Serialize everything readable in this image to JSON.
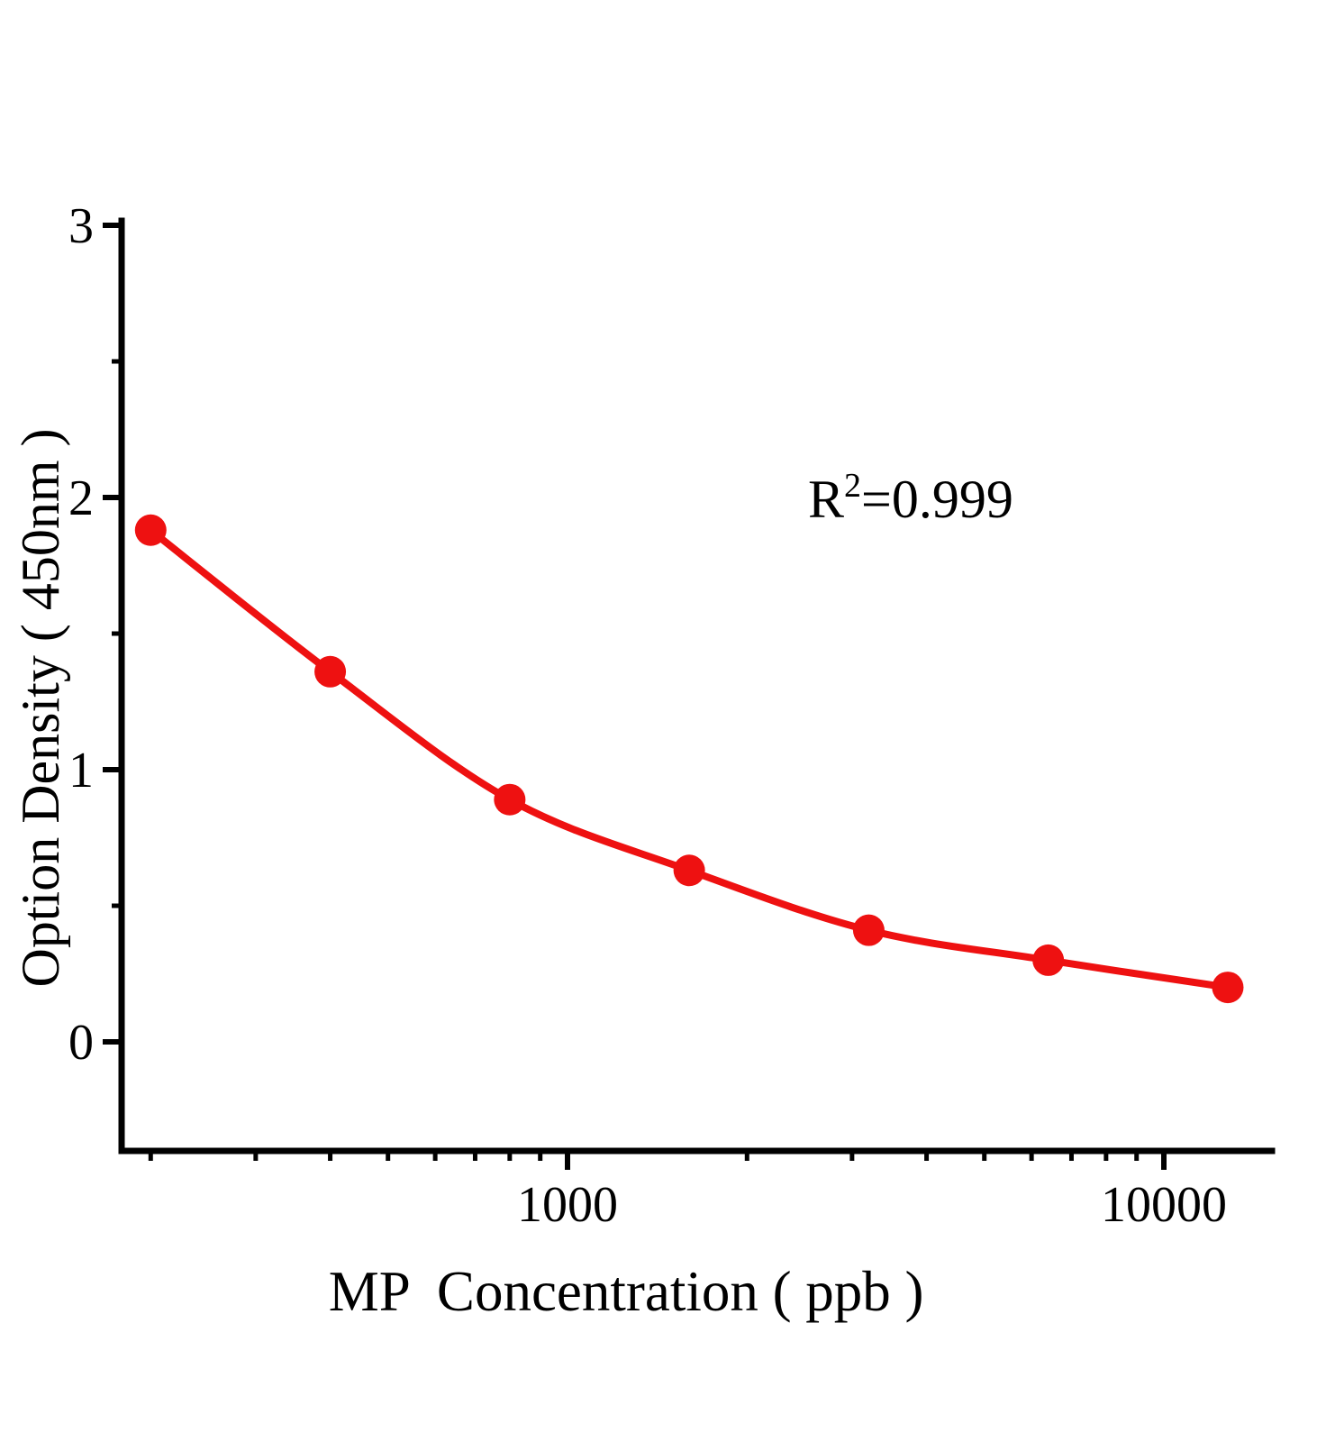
{
  "figure": {
    "background": "#ffffff",
    "annotation": {
      "text": "R²=0.999",
      "base": "R",
      "superscript": "2",
      "rest": "=0.999"
    }
  },
  "chart_data": {
    "type": "line",
    "title": "",
    "xlabel": "MP  Concentration（ppb）",
    "ylabel": "Option Density（450nm）",
    "x_scale": "log10",
    "y_scale": "linear",
    "x": [
      200,
      400,
      800,
      1600,
      3200,
      6400,
      12800
    ],
    "y": [
      1.88,
      1.36,
      0.89,
      0.63,
      0.41,
      0.3,
      0.2
    ],
    "marker": "filled-circle",
    "marker_color": "#ee1111",
    "line_color": "#ee1111",
    "axis_color": "#000000",
    "x_major_ticks": [
      1000,
      10000
    ],
    "x_major_tick_labels": [
      "1000",
      "10000"
    ],
    "x_minor_ticks": [
      200,
      300,
      400,
      500,
      600,
      700,
      800,
      900,
      2000,
      3000,
      4000,
      5000,
      6000,
      7000,
      8000,
      9000
    ],
    "y_major_ticks": [
      3,
      2,
      1,
      0
    ],
    "y_major_tick_labels": [
      "3",
      "2",
      "1",
      "0"
    ],
    "y_minor_ticks": [
      2.5,
      1.5,
      0.5
    ],
    "xlim": [
      180,
      15500
    ],
    "ylim": [
      -0.4,
      3.0
    ],
    "grid": false,
    "legend": "none",
    "r_squared": 0.999
  }
}
